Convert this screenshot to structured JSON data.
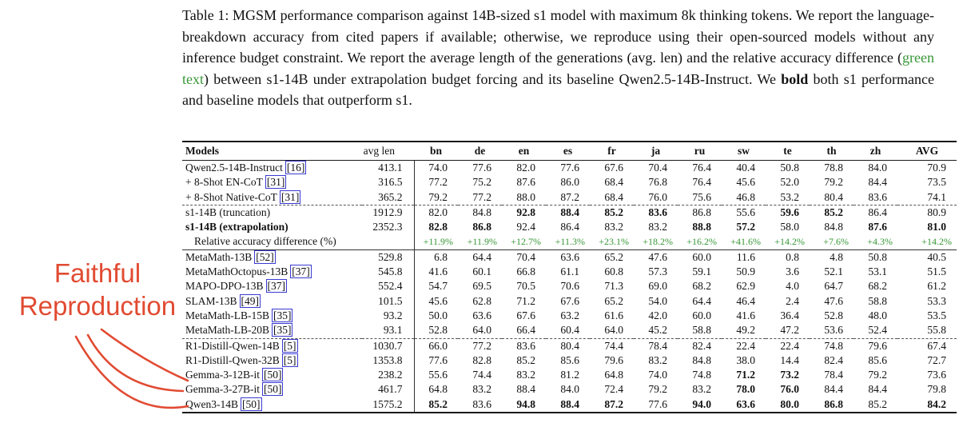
{
  "caption": {
    "part1": "Table 1: MGSM performance comparison against 14B-sized s1 model with maximum 8k thinking tokens. We report the language-breakdown accuracy from cited papers if available; otherwise, we reproduce using their open-sourced models without any inference budget constraint. We report the average length of the generations (avg. len) and the relative accuracy difference (",
    "green_text": "green text",
    "part2": ") between s1-14B under extrapolation budget forcing and its baseline Qwen2.5-14B-Instruct. We ",
    "bold_text": "bold",
    "part3": " both s1 performance and baseline models that outperform s1."
  },
  "annotation": {
    "line1": "Faithful",
    "line2": "Reproduction"
  },
  "colors": {
    "green": "#389738",
    "annotation_red": "#e14b32",
    "cite_border": "#3a3ad2"
  },
  "table": {
    "columns": [
      "Models",
      "avg len",
      "bn",
      "de",
      "en",
      "es",
      "fr",
      "ja",
      "ru",
      "sw",
      "te",
      "th",
      "zh",
      "AVG"
    ],
    "groups": [
      {
        "divider": "none",
        "rows": [
          {
            "name": "Qwen2.5-14B-Instruct",
            "cite": "[16]",
            "avg_len": "413.1",
            "values": [
              "74.0",
              "77.6",
              "82.0",
              "77.6",
              "67.6",
              "70.4",
              "76.4",
              "40.4",
              "50.8",
              "78.8",
              "84.0",
              "70.9"
            ],
            "bold": []
          },
          {
            "name": "+ 8-Shot EN-CoT",
            "cite": "[31]",
            "avg_len": "316.5",
            "values": [
              "77.2",
              "75.2",
              "87.6",
              "86.0",
              "68.4",
              "76.8",
              "76.4",
              "45.6",
              "52.0",
              "79.2",
              "84.4",
              "73.5"
            ],
            "bold": []
          },
          {
            "name": "+ 8-Shot Native-CoT",
            "cite": "[31]",
            "avg_len": "365.2",
            "values": [
              "79.2",
              "77.2",
              "88.0",
              "87.2",
              "68.4",
              "76.0",
              "75.6",
              "46.8",
              "53.2",
              "80.4",
              "83.6",
              "74.1"
            ],
            "bold": []
          }
        ]
      },
      {
        "divider": "dashed",
        "rows": [
          {
            "name": "s1-14B (truncation)",
            "cite": "",
            "avg_len": "1912.9",
            "values": [
              "82.0",
              "84.8",
              "92.8",
              "88.4",
              "85.2",
              "83.6",
              "86.8",
              "55.6",
              "59.6",
              "85.2",
              "86.4",
              "80.9"
            ],
            "bold": [
              2,
              3,
              4,
              5,
              8,
              9
            ]
          },
          {
            "name": "s1-14B (extrapolation)",
            "bold_name": true,
            "cite": "",
            "avg_len": "2352.3",
            "values": [
              "82.8",
              "86.8",
              "92.4",
              "86.4",
              "83.2",
              "83.2",
              "88.8",
              "57.2",
              "58.0",
              "84.8",
              "87.6",
              "81.0"
            ],
            "bold": [
              0,
              1,
              6,
              7,
              10,
              11
            ]
          },
          {
            "name": "Relative accuracy difference (%)",
            "indent": true,
            "green": true,
            "cite": "",
            "avg_len": "",
            "values": [
              "+11.9%",
              "+11.9%",
              "+12.7%",
              "+11.3%",
              "+23.1%",
              "+18.2%",
              "+16.2%",
              "+41.6%",
              "+14.2%",
              "+7.6%",
              "+4.3%",
              "+14.2%"
            ],
            "bold": []
          }
        ]
      },
      {
        "divider": "solid",
        "rows": [
          {
            "name": "MetaMath-13B",
            "cite": "[52]",
            "avg_len": "529.8",
            "values": [
              "6.8",
              "64.4",
              "70.4",
              "63.6",
              "65.2",
              "47.6",
              "60.0",
              "11.6",
              "0.8",
              "4.8",
              "50.8",
              "40.5"
            ],
            "bold": []
          },
          {
            "name": "MetaMathOctopus-13B",
            "cite": "[37]",
            "avg_len": "545.8",
            "values": [
              "41.6",
              "60.1",
              "66.8",
              "61.1",
              "60.8",
              "57.3",
              "59.1",
              "50.9",
              "3.6",
              "52.1",
              "53.1",
              "51.5"
            ],
            "bold": []
          },
          {
            "name": "MAPO-DPO-13B",
            "cite": "[37]",
            "avg_len": "552.4",
            "values": [
              "54.7",
              "69.5",
              "70.5",
              "70.6",
              "71.3",
              "69.0",
              "68.2",
              "62.9",
              "4.0",
              "64.7",
              "68.2",
              "61.2"
            ],
            "bold": []
          },
          {
            "name": "SLAM-13B",
            "cite": "[49]",
            "avg_len": "101.5",
            "values": [
              "45.6",
              "62.8",
              "71.2",
              "67.6",
              "65.2",
              "54.0",
              "64.4",
              "46.4",
              "2.4",
              "47.6",
              "58.8",
              "53.3"
            ],
            "bold": []
          },
          {
            "name": "MetaMath-LB-15B",
            "cite": "[35]",
            "avg_len": "93.2",
            "values": [
              "50.0",
              "63.6",
              "67.6",
              "63.2",
              "61.6",
              "42.0",
              "60.0",
              "41.6",
              "36.4",
              "52.8",
              "48.0",
              "53.5"
            ],
            "bold": []
          },
          {
            "name": "MetaMath-LB-20B",
            "cite": "[35]",
            "avg_len": "93.1",
            "values": [
              "52.8",
              "64.0",
              "66.4",
              "60.4",
              "64.0",
              "45.2",
              "58.8",
              "49.2",
              "47.2",
              "53.6",
              "52.4",
              "55.8"
            ],
            "bold": []
          }
        ]
      },
      {
        "divider": "dashed",
        "rows": [
          {
            "name": "R1-Distill-Qwen-14B",
            "cite": "[5]",
            "avg_len": "1030.7",
            "values": [
              "66.0",
              "77.2",
              "83.6",
              "80.4",
              "74.4",
              "78.4",
              "82.4",
              "22.4",
              "22.4",
              "74.8",
              "79.6",
              "67.4"
            ],
            "bold": []
          },
          {
            "name": "R1-Distill-Qwen-32B",
            "cite": "[5]",
            "avg_len": "1353.8",
            "values": [
              "77.6",
              "82.8",
              "85.2",
              "85.6",
              "79.6",
              "83.2",
              "84.8",
              "38.0",
              "14.4",
              "82.4",
              "85.6",
              "72.7"
            ],
            "bold": []
          },
          {
            "name": "Gemma-3-12B-it",
            "cite": "[50]",
            "avg_len": "238.2",
            "values": [
              "55.6",
              "74.4",
              "83.2",
              "81.2",
              "64.8",
              "74.0",
              "74.8",
              "71.2",
              "73.2",
              "78.4",
              "79.2",
              "73.6"
            ],
            "bold": [
              7,
              8
            ]
          },
          {
            "name": "Gemma-3-27B-it",
            "cite": "[50]",
            "avg_len": "461.7",
            "values": [
              "64.8",
              "83.2",
              "88.4",
              "84.0",
              "72.4",
              "79.2",
              "83.2",
              "78.0",
              "76.0",
              "84.4",
              "84.4",
              "79.8"
            ],
            "bold": [
              7,
              8
            ]
          },
          {
            "name": "Qwen3-14B",
            "cite": "[50]",
            "avg_len": "1575.2",
            "values": [
              "85.2",
              "83.6",
              "94.8",
              "88.4",
              "87.2",
              "77.6",
              "94.0",
              "63.6",
              "80.0",
              "86.8",
              "85.2",
              "84.2"
            ],
            "bold": [
              0,
              2,
              3,
              4,
              6,
              7,
              8,
              9,
              11
            ]
          }
        ]
      }
    ]
  }
}
